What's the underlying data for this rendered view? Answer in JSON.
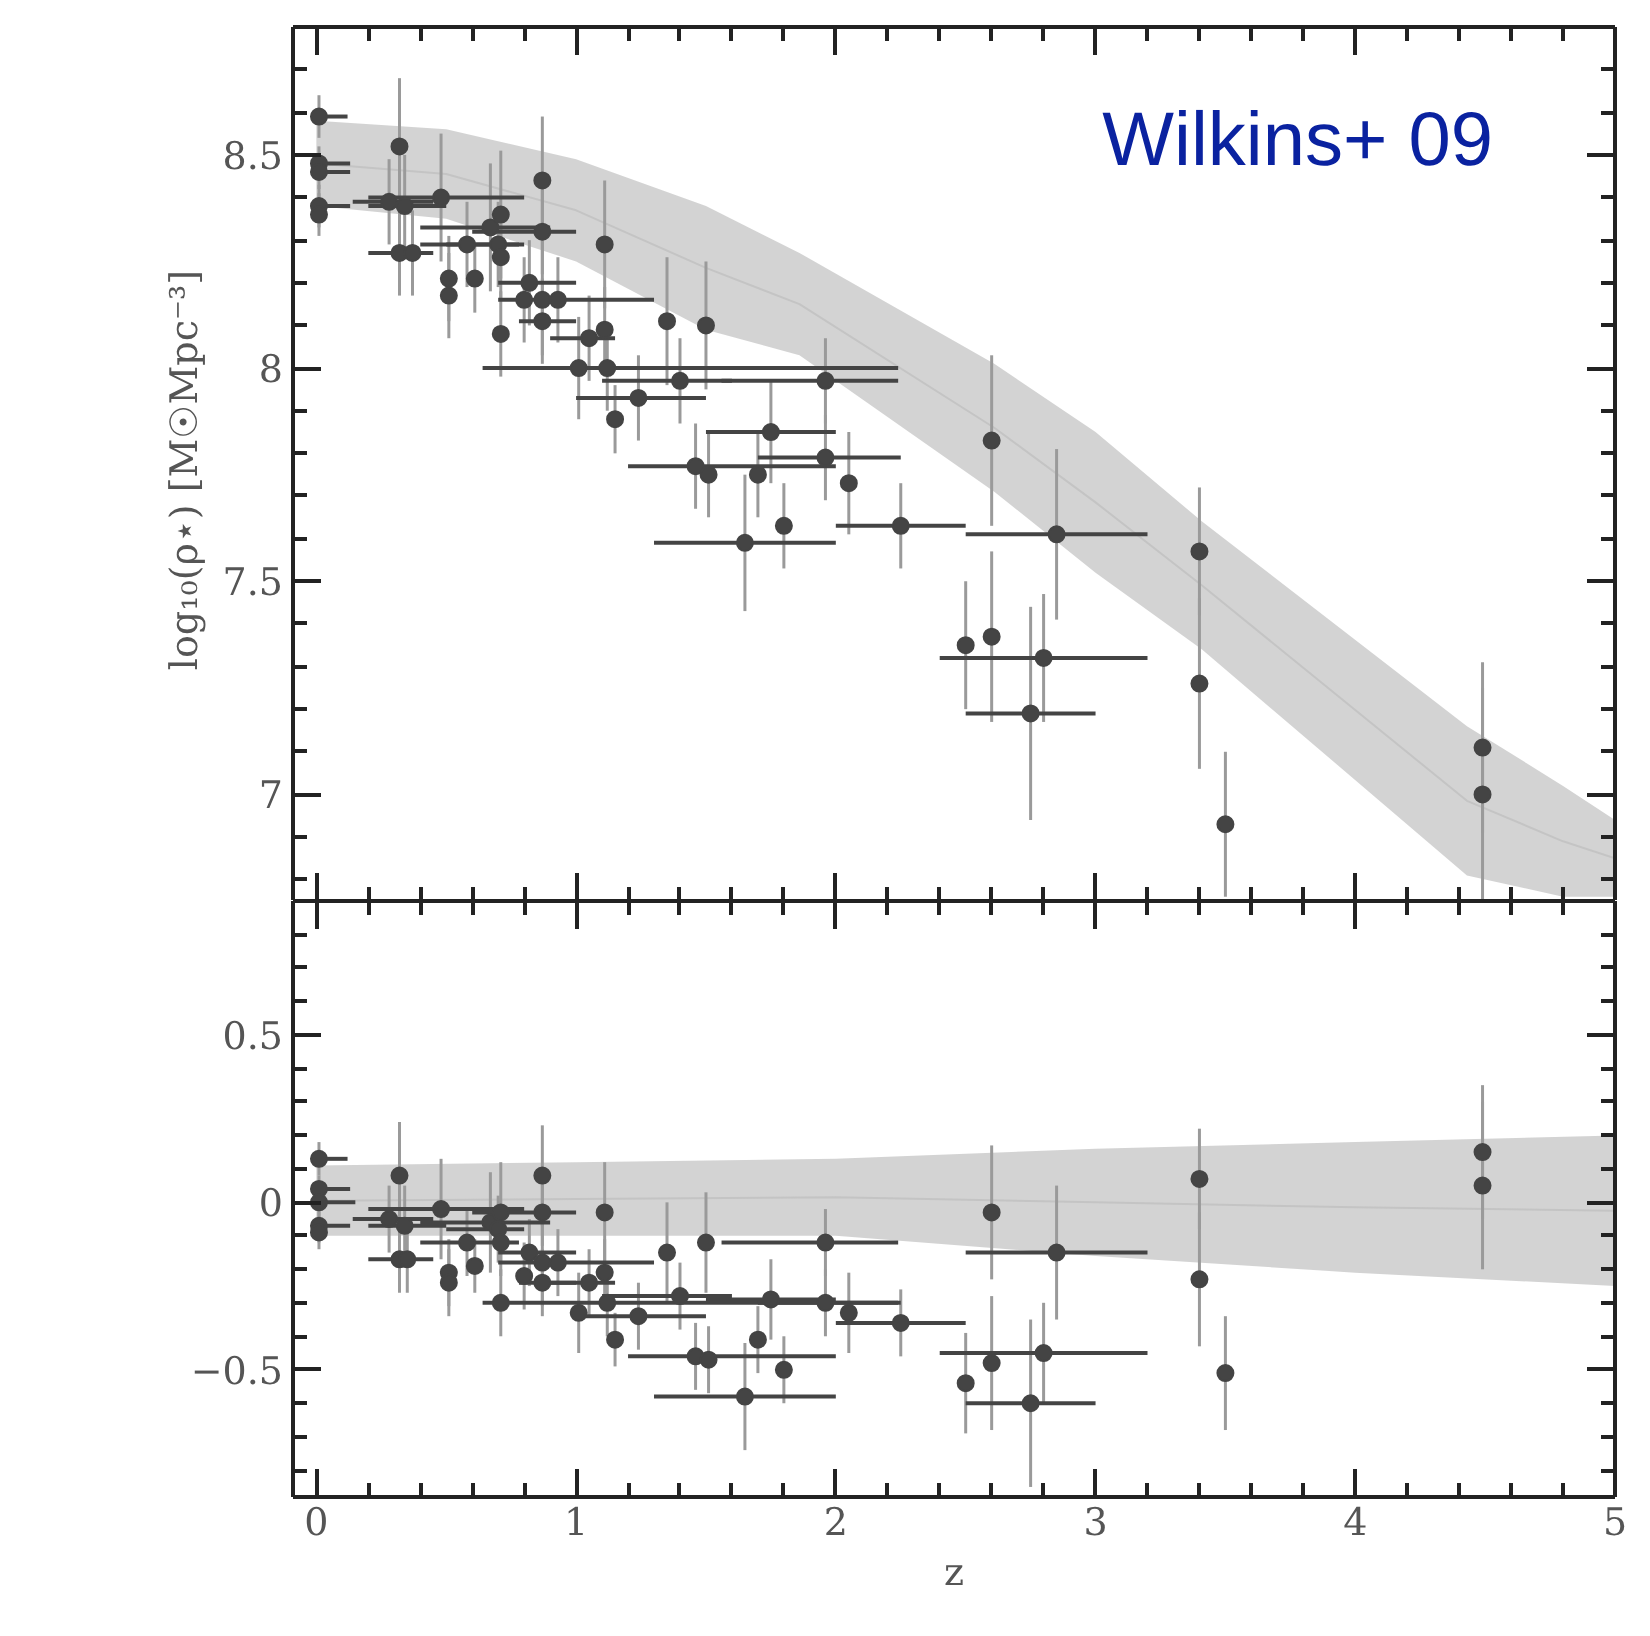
{
  "chart_data": [
    {
      "type": "scatter",
      "ylabel": "log₁₀(ρ⋆)  [M☉Mpc⁻³]",
      "annotations": [
        "Wilkins+ 09"
      ],
      "tick_labels": "y",
      "marker": "circle",
      "xlim": [
        -0.09,
        5
      ],
      "xticks": [
        0,
        {
          "value": 0.2,
          "label": null
        },
        {
          "value": 0.4,
          "label": null
        },
        {
          "value": 0.6,
          "label": null
        },
        {
          "value": 0.8,
          "label": null
        },
        1,
        {
          "value": 1.2,
          "label": null
        },
        {
          "value": 1.4,
          "label": null
        },
        {
          "value": 1.6,
          "label": null
        },
        {
          "value": 1.8,
          "label": null
        },
        2,
        {
          "value": 2.2,
          "label": null
        },
        {
          "value": 2.4,
          "label": null
        },
        {
          "value": 2.6,
          "label": null
        },
        {
          "value": 2.8,
          "label": null
        },
        3,
        {
          "value": 3.2,
          "label": null
        },
        {
          "value": 3.4,
          "label": null
        },
        {
          "value": 3.6,
          "label": null
        },
        {
          "value": 3.8,
          "label": null
        },
        4,
        {
          "value": 4.2,
          "label": null
        },
        {
          "value": 4.4,
          "label": null
        },
        {
          "value": 4.6,
          "label": null
        },
        {
          "value": 4.8,
          "label": null
        },
        5
      ],
      "ylim": [
        6.75,
        8.8
      ],
      "yticks": [
        {
          "value": 6.8,
          "label": null
        },
        {
          "value": 6.9,
          "label": null
        },
        7,
        {
          "value": 7.1,
          "label": null
        },
        {
          "value": 7.2,
          "label": null
        },
        {
          "value": 7.3,
          "label": null
        },
        {
          "value": 7.4,
          "label": null
        },
        7.5,
        {
          "value": 7.6,
          "label": null
        },
        {
          "value": 7.7,
          "label": null
        },
        {
          "value": 7.8,
          "label": null
        },
        {
          "value": 7.9,
          "label": null
        },
        8,
        {
          "value": 8.1,
          "label": null
        },
        {
          "value": 8.2,
          "label": null
        },
        {
          "value": 8.3,
          "label": null
        },
        {
          "value": 8.4,
          "label": null
        },
        8.5,
        {
          "value": 8.6,
          "label": null
        },
        {
          "value": 8.7,
          "label": null
        }
      ],
      "series": [
        {
          "type": "line",
          "marker": "none",
          "color": "#c4c4c4",
          "x": [
            0,
            0.5,
            1,
            1.5,
            1.86,
            2.61,
            3.0,
            3.41,
            4.43,
            4.8,
            5
          ],
          "values": [
            8.48,
            8.455,
            8.37,
            8.235,
            8.15,
            7.86,
            7.685,
            7.49,
            6.985,
            6.89,
            6.85
          ],
          "lower": [
            8.38,
            8.35,
            8.25,
            8.09,
            8.03,
            7.71,
            7.52,
            7.34,
            6.81,
            6.76,
            6.76
          ],
          "upper": [
            8.58,
            8.56,
            8.49,
            8.38,
            8.27,
            8.01,
            7.85,
            7.64,
            7.16,
            7.02,
            6.94
          ]
        },
        {
          "color": "#444444",
          "x": [
            0.01,
            0.01,
            0.01,
            0.01,
            0.01,
            0.32,
            0.28,
            0.34,
            0.32,
            0.37,
            0.48,
            0.51,
            0.51,
            0.58,
            0.61,
            0.67,
            0.71,
            0.7,
            0.71,
            0.71,
            0.87,
            0.87,
            0.82,
            0.8,
            0.87,
            0.93,
            0.87,
            1.11,
            1.11,
            1.05,
            1.01,
            1.12,
            1.15,
            1.24,
            1.35,
            1.4,
            1.5,
            1.46,
            1.51,
            1.7,
            1.75,
            1.65,
            1.8,
            1.96,
            1.96,
            2.05,
            2.25,
            2.6,
            2.85,
            2.5,
            2.6,
            2.8,
            2.75,
            3.4,
            3.4,
            3.5,
            4.49,
            4.49
          ],
          "values": [
            8.59,
            8.48,
            8.46,
            8.38,
            8.36,
            8.52,
            8.39,
            8.38,
            8.27,
            8.27,
            8.4,
            8.21,
            8.17,
            8.29,
            8.21,
            8.33,
            8.36,
            8.29,
            8.26,
            8.08,
            8.44,
            8.32,
            8.2,
            8.16,
            8.16,
            8.16,
            8.11,
            8.29,
            8.09,
            8.07,
            8.0,
            8.0,
            7.88,
            7.93,
            8.11,
            7.97,
            8.1,
            7.77,
            7.75,
            7.75,
            7.85,
            7.59,
            7.63,
            7.97,
            7.79,
            7.73,
            7.63,
            7.83,
            7.61,
            7.35,
            7.37,
            7.32,
            7.19,
            7.57,
            7.26,
            6.93,
            7.11,
            7.0
          ],
          "errors": [
            0.05,
            0.04,
            0.04,
            0.05,
            0.05,
            0.16,
            0.1,
            0.12,
            0.1,
            0.1,
            0.15,
            0.1,
            0.1,
            0.1,
            0.08,
            0.15,
            0.15,
            0.1,
            0.1,
            0.1,
            0.15,
            0.1,
            0.1,
            0.1,
            0.13,
            0.1,
            0.1,
            0.15,
            0.1,
            0.1,
            0.12,
            0.1,
            0.08,
            0.1,
            0.15,
            0.1,
            0.15,
            0.1,
            0.1,
            0.1,
            0.12,
            0.16,
            0.1,
            0.1,
            0.1,
            0.12,
            0.1,
            0.2,
            0.2,
            0.15,
            0.2,
            0.15,
            0.25,
            0.15,
            0.2,
            0.17,
            0.2,
            0.25
          ],
          "xerrors": [
            [
              0.01,
              0.12
            ],
            [
              0.01,
              0.13
            ],
            [
              0.01,
              0.13
            ],
            [
              0.01,
              0.13
            ],
            null,
            null,
            [
              0.14,
              0.45
            ],
            [
              0.2,
              0.5
            ],
            [
              0.2,
              0.45
            ],
            null,
            [
              0.2,
              0.8
            ],
            null,
            null,
            [
              0.4,
              0.78
            ],
            null,
            [
              0.4,
              0.9
            ],
            null,
            [
              0.5,
              0.8
            ],
            null,
            null,
            null,
            [
              0.6,
              1.0
            ],
            [
              0.7,
              1.0
            ],
            null,
            [
              0.7,
              1.3
            ],
            null,
            [
              0.78,
              1.0
            ],
            null,
            null,
            [
              0.9,
              1.15
            ],
            [
              0.64,
              2.24
            ],
            null,
            null,
            [
              1.0,
              1.5
            ],
            null,
            [
              1.1,
              1.6
            ],
            null,
            [
              1.2,
              2.0
            ],
            null,
            null,
            [
              1.5,
              2.0
            ],
            [
              1.3,
              2.0
            ],
            null,
            [
              1.56,
              2.24
            ],
            [
              1.7,
              2.25
            ],
            null,
            [
              2.0,
              2.5
            ],
            null,
            [
              2.5,
              3.2
            ],
            null,
            null,
            [
              2.4,
              3.2
            ],
            [
              2.5,
              3.0
            ],
            null,
            null,
            null,
            null,
            null
          ]
        }
      ]
    },
    {
      "type": "scatter",
      "xlabel": "z",
      "marker": "circle",
      "xlim": [
        -0.09,
        5
      ],
      "xticks": [
        0,
        {
          "value": 0.2,
          "label": null
        },
        {
          "value": 0.4,
          "label": null
        },
        {
          "value": 0.6,
          "label": null
        },
        {
          "value": 0.8,
          "label": null
        },
        1,
        {
          "value": 1.2,
          "label": null
        },
        {
          "value": 1.4,
          "label": null
        },
        {
          "value": 1.6,
          "label": null
        },
        {
          "value": 1.8,
          "label": null
        },
        2,
        {
          "value": 2.2,
          "label": null
        },
        {
          "value": 2.4,
          "label": null
        },
        {
          "value": 2.6,
          "label": null
        },
        {
          "value": 2.8,
          "label": null
        },
        3,
        {
          "value": 3.2,
          "label": null
        },
        {
          "value": 3.4,
          "label": null
        },
        {
          "value": 3.6,
          "label": null
        },
        {
          "value": 3.8,
          "label": null
        },
        4,
        {
          "value": 4.2,
          "label": null
        },
        {
          "value": 4.4,
          "label": null
        },
        {
          "value": 4.6,
          "label": null
        },
        {
          "value": 4.8,
          "label": null
        },
        5
      ],
      "ylim": [
        -0.88,
        0.9
      ],
      "yticks": [
        {
          "value": -0.8,
          "label": null
        },
        {
          "value": -0.7,
          "label": null
        },
        {
          "value": -0.6,
          "label": null
        },
        {
          "value": -0.5,
          "label": "−0.5"
        },
        {
          "value": -0.4,
          "label": null
        },
        {
          "value": -0.3,
          "label": null
        },
        {
          "value": -0.2,
          "label": null
        },
        {
          "value": -0.1,
          "label": null
        },
        0,
        {
          "value": 0.1,
          "label": null
        },
        {
          "value": 0.2,
          "label": null
        },
        {
          "value": 0.3,
          "label": null
        },
        {
          "value": 0.4,
          "label": null
        },
        0.5,
        {
          "value": 0.6,
          "label": null
        },
        {
          "value": 0.7,
          "label": null
        },
        {
          "value": 0.8,
          "label": null
        }
      ],
      "series": [
        {
          "type": "line",
          "marker": "none",
          "color": "#c4c4c4",
          "x": [
            0,
            1,
            2,
            3,
            4,
            5
          ],
          "values": [
            0.005,
            0.01,
            0.015,
            0.0,
            -0.015,
            -0.025
          ],
          "lower": [
            -0.1,
            -0.1,
            -0.1,
            -0.16,
            -0.21,
            -0.25
          ],
          "upper": [
            0.11,
            0.12,
            0.13,
            0.16,
            0.18,
            0.2
          ]
        },
        {
          "color": "#444444",
          "x": [
            0.01,
            0.01,
            0.01,
            0.01,
            0.01,
            0.32,
            0.28,
            0.34,
            0.32,
            0.35,
            0.48,
            0.51,
            0.51,
            0.58,
            0.61,
            0.67,
            0.71,
            0.7,
            0.71,
            0.71,
            0.87,
            0.87,
            0.82,
            0.8,
            0.87,
            0.93,
            0.87,
            1.11,
            1.11,
            1.05,
            1.01,
            1.12,
            1.15,
            1.24,
            1.35,
            1.4,
            1.5,
            1.46,
            1.51,
            1.7,
            1.75,
            1.65,
            1.8,
            1.96,
            1.96,
            2.05,
            2.25,
            2.6,
            2.85,
            2.5,
            2.6,
            2.8,
            2.75,
            3.4,
            3.4,
            3.5,
            4.49,
            4.49
          ],
          "values": [
            0.13,
            0.04,
            0.0,
            -0.07,
            -0.09,
            0.08,
            -0.05,
            -0.07,
            -0.17,
            -0.17,
            -0.02,
            -0.21,
            -0.24,
            -0.12,
            -0.19,
            -0.06,
            -0.03,
            -0.08,
            -0.12,
            -0.3,
            0.08,
            -0.03,
            -0.15,
            -0.22,
            -0.18,
            -0.18,
            -0.24,
            -0.03,
            -0.21,
            -0.24,
            -0.33,
            -0.3,
            -0.41,
            -0.34,
            -0.15,
            -0.28,
            -0.12,
            -0.46,
            -0.47,
            -0.41,
            -0.29,
            -0.58,
            -0.5,
            -0.12,
            -0.3,
            -0.33,
            -0.36,
            -0.03,
            -0.15,
            -0.54,
            -0.48,
            -0.45,
            -0.6,
            0.07,
            -0.23,
            -0.51,
            0.15,
            0.05
          ],
          "errors": [
            0.05,
            0.04,
            0.04,
            0.05,
            0.05,
            0.16,
            0.1,
            0.12,
            0.1,
            0.1,
            0.15,
            0.1,
            0.1,
            0.1,
            0.08,
            0.15,
            0.15,
            0.1,
            0.1,
            0.1,
            0.15,
            0.1,
            0.1,
            0.1,
            0.13,
            0.1,
            0.1,
            0.15,
            0.1,
            0.1,
            0.12,
            0.1,
            0.08,
            0.1,
            0.15,
            0.1,
            0.15,
            0.1,
            0.1,
            0.1,
            0.12,
            0.16,
            0.1,
            0.1,
            0.1,
            0.12,
            0.1,
            0.2,
            0.2,
            0.15,
            0.2,
            0.15,
            0.25,
            0.15,
            0.2,
            0.17,
            0.2,
            0.25
          ],
          "xerrors": [
            [
              0.01,
              0.12
            ],
            [
              0.01,
              0.13
            ],
            [
              0.01,
              0.15
            ],
            [
              0.01,
              0.13
            ],
            null,
            null,
            [
              0.14,
              0.45
            ],
            [
              0.2,
              0.5
            ],
            [
              0.2,
              0.45
            ],
            null,
            [
              0.2,
              0.8
            ],
            null,
            null,
            [
              0.4,
              0.78
            ],
            null,
            [
              0.4,
              0.9
            ],
            null,
            [
              0.5,
              0.8
            ],
            null,
            [
              0.64,
              2.24
            ],
            null,
            [
              0.6,
              1.0
            ],
            [
              0.7,
              1.0
            ],
            null,
            [
              0.7,
              1.3
            ],
            null,
            [
              0.78,
              1.0
            ],
            null,
            null,
            [
              0.9,
              1.15
            ],
            null,
            null,
            null,
            [
              1.0,
              1.5
            ],
            null,
            [
              1.1,
              1.6
            ],
            null,
            [
              1.2,
              2.0
            ],
            null,
            null,
            [
              1.5,
              2.0
            ],
            [
              1.3,
              2.0
            ],
            null,
            [
              1.56,
              2.24
            ],
            [
              1.7,
              2.25
            ],
            null,
            [
              2.0,
              2.5
            ],
            null,
            [
              2.5,
              3.2
            ],
            null,
            null,
            [
              2.4,
              3.2
            ],
            [
              2.5,
              3.0
            ],
            null,
            null,
            null,
            null,
            null
          ]
        }
      ]
    }
  ]
}
